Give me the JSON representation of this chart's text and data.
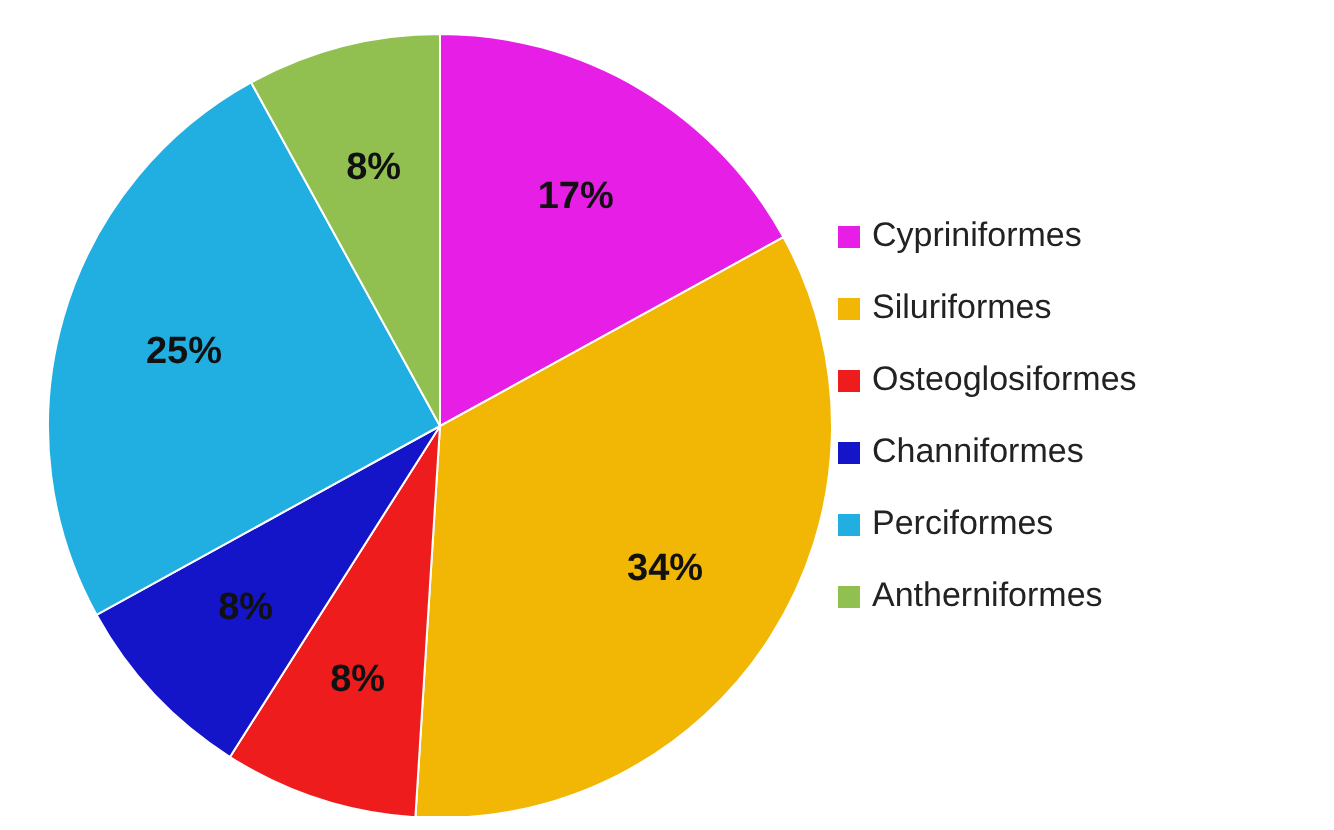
{
  "chart_data": {
    "type": "pie",
    "categories": [
      "Cypriniformes",
      "Siluriformes",
      "Osteoglosiformes",
      "Channiformes",
      "Perciformes",
      "Antherniformes"
    ],
    "values": [
      17,
      34,
      8,
      8,
      25,
      8
    ],
    "value_labels": [
      "17%",
      "34%",
      "8%",
      "8%",
      "25%",
      "8%"
    ],
    "colors": [
      "#e61ee6",
      "#f2b705",
      "#ee1c1c",
      "#1414c8",
      "#21aee0",
      "#92c050"
    ],
    "legend": "right"
  }
}
